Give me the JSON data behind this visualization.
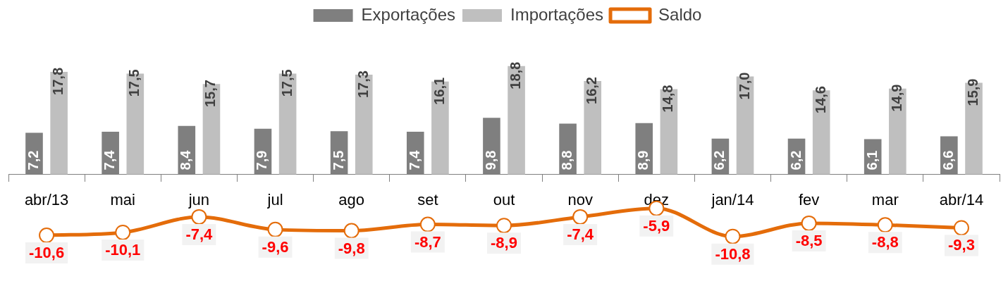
{
  "chart_data": {
    "type": "bar",
    "categories": [
      "abr/13",
      "mai",
      "jun",
      "jul",
      "ago",
      "set",
      "out",
      "nov",
      "dez",
      "jan/14",
      "fev",
      "mar",
      "abr/14"
    ],
    "series": [
      {
        "name": "Exportações",
        "color": "#7f7f7f",
        "values": [
          7.2,
          7.4,
          8.4,
          7.9,
          7.5,
          7.4,
          9.8,
          8.8,
          8.9,
          6.2,
          6.2,
          6.1,
          6.6
        ],
        "value_labels": [
          "7,2",
          "7,4",
          "8,4",
          "7,9",
          "7,5",
          "7,4",
          "9,8",
          "8,8",
          "8,9",
          "6,2",
          "6,2",
          "6,1",
          "6,6"
        ]
      },
      {
        "name": "Importações",
        "color": "#bfbfbf",
        "values": [
          17.8,
          17.5,
          15.7,
          17.5,
          17.3,
          16.1,
          18.8,
          16.2,
          14.8,
          17.0,
          14.6,
          14.9,
          15.9
        ],
        "value_labels": [
          "17,8",
          "17,5",
          "15,7",
          "17,5",
          "17,3",
          "16,1",
          "18,8",
          "16,2",
          "14,8",
          "17,0",
          "14,6",
          "14,9",
          "15,9"
        ]
      },
      {
        "name": "Saldo",
        "type": "line",
        "color": "#e46c0a",
        "values": [
          -10.6,
          -10.1,
          -7.4,
          -9.6,
          -9.8,
          -8.7,
          -8.9,
          -7.4,
          -5.9,
          -10.8,
          -8.5,
          -8.8,
          -9.3
        ],
        "value_labels": [
          "-10,6",
          "-10,1",
          "-7,4",
          "-9,6",
          "-9,8",
          "-8,7",
          "-8,9",
          "-7,4",
          "-5,9",
          "-10,8",
          "-8,5",
          "-8,8",
          "-9,3"
        ]
      }
    ],
    "legend": "top",
    "tick_labels": "x",
    "marker": "circle",
    "grid": false
  }
}
